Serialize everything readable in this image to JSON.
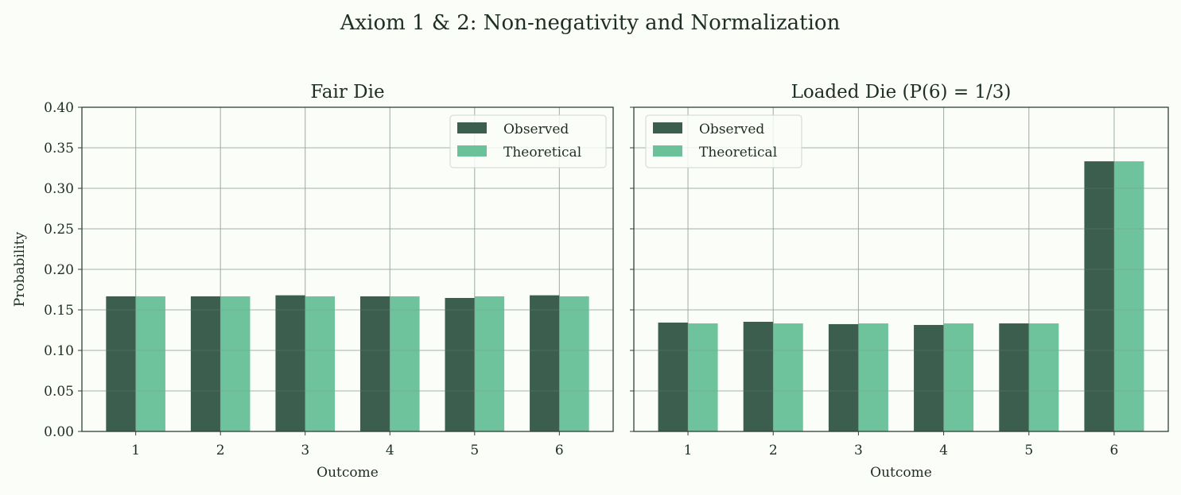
{
  "title": "Axiom 1 & 2: Non-negativity and Normalization",
  "colors": {
    "observed": "#3c5e4f",
    "theoretical": "#6bc29a",
    "background": "#fafdf8",
    "axis": "#2f4236",
    "grid": "#b5c4b8"
  },
  "chart_data": [
    {
      "type": "bar",
      "title": "Fair Die",
      "xlabel": "Outcome",
      "ylabel": "Probability",
      "categories": [
        "1",
        "2",
        "3",
        "4",
        "5",
        "6"
      ],
      "ylim": [
        0,
        0.4
      ],
      "yticks": [
        "0.00",
        "0.05",
        "0.10",
        "0.15",
        "0.20",
        "0.25",
        "0.30",
        "0.35",
        "0.40"
      ],
      "grid": true,
      "legend": "top-right",
      "series": [
        {
          "name": "Observed",
          "values": [
            0.1667,
            0.1667,
            0.168,
            0.1667,
            0.1647,
            0.168
          ]
        },
        {
          "name": "Theoretical",
          "values": [
            0.1667,
            0.1667,
            0.1667,
            0.1667,
            0.1667,
            0.1667
          ]
        }
      ]
    },
    {
      "type": "bar",
      "title": "Loaded Die  (P(6) = 1/3)",
      "xlabel": "Outcome",
      "ylabel": "",
      "categories": [
        "1",
        "2",
        "3",
        "4",
        "5",
        "6"
      ],
      "ylim": [
        0,
        0.4
      ],
      "grid": true,
      "legend": "top-left",
      "series": [
        {
          "name": "Observed",
          "values": [
            0.1343,
            0.1353,
            0.1324,
            0.1314,
            0.1333,
            0.3333
          ]
        },
        {
          "name": "Theoretical",
          "values": [
            0.1333,
            0.1333,
            0.1333,
            0.1333,
            0.1333,
            0.3333
          ]
        }
      ]
    }
  ]
}
